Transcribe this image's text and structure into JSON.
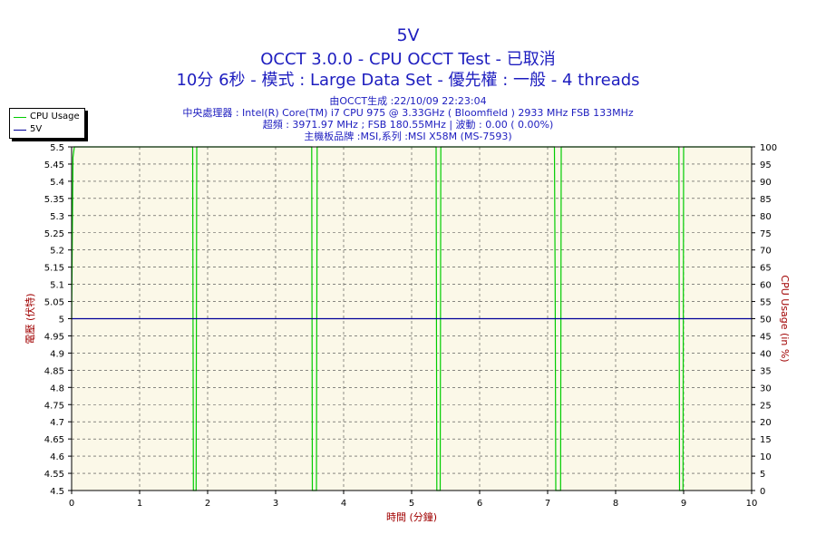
{
  "header": {
    "title": "5V",
    "subtitle": "OCCT 3.0.0 - CPU OCCT Test - 已取消",
    "line3": "10分 6秒 - 模式 : Large Data Set - 優先權 : 一般 - 4 threads",
    "info1": "由OCCT生成 :22/10/09 22:23:04",
    "info2": "中央處理器 : Intel(R) Core(TM) i7 CPU 975 @ 3.33GHz ( Bloomfield ) 2933 MHz FSB 133MHz",
    "info3": "超頻 : 3971.97 MHz ; FSB 180.55MHz | 波動 : 0.00 ( 0.00%)",
    "info4": "主機板品牌 :MSI,系列 :MSI X58M (MS-7593)"
  },
  "legend": [
    {
      "label": "CPU Usage",
      "color": "#00cc00"
    },
    {
      "label": "5V",
      "color": "#000099"
    }
  ],
  "chart_data": {
    "type": "line",
    "xlabel": "時間 (分鐘)",
    "ylabel_left": "電壓 (伏特)",
    "ylabel_right": "CPU Usage (in %)",
    "xlim": [
      0,
      10
    ],
    "x_ticks": [
      0,
      1,
      2,
      3,
      4,
      5,
      6,
      7,
      8,
      9,
      10
    ],
    "y_left_lim": [
      4.5,
      5.5
    ],
    "y_left_ticks": [
      "4.5",
      "4.55",
      "4.6",
      "4.65",
      "4.7",
      "4.75",
      "4.8",
      "4.85",
      "4.9",
      "4.95",
      "5",
      "5.05",
      "5.1",
      "5.15",
      "5.2",
      "5.25",
      "5.3",
      "5.35",
      "5.4",
      "5.45",
      "5.5"
    ],
    "y_right_lim": [
      0,
      100
    ],
    "y_right_ticks": [
      0,
      5,
      10,
      15,
      20,
      25,
      30,
      35,
      40,
      45,
      50,
      55,
      60,
      65,
      70,
      75,
      80,
      85,
      90,
      95,
      100
    ],
    "grid": true,
    "series": [
      {
        "name": "CPU Usage",
        "axis": "right",
        "color": "#00cc00",
        "x": [
          0,
          0.02,
          0.04,
          0.06,
          1.78,
          1.79,
          1.83,
          1.84,
          3.53,
          3.54,
          3.6,
          3.61,
          5.36,
          5.37,
          5.42,
          5.43,
          7.1,
          7.11,
          7.12,
          7.19,
          7.2,
          8.93,
          8.94,
          8.99,
          9.0,
          10.0
        ],
        "y": [
          50,
          97,
          100,
          100,
          100,
          0,
          0,
          100,
          100,
          0,
          0,
          100,
          100,
          0,
          0,
          100,
          100,
          60,
          0,
          0,
          100,
          100,
          0,
          0,
          100,
          100
        ]
      },
      {
        "name": "5V",
        "axis": "left",
        "color": "#000099",
        "x": [
          0,
          10
        ],
        "y": [
          5.0,
          5.0
        ]
      }
    ]
  }
}
